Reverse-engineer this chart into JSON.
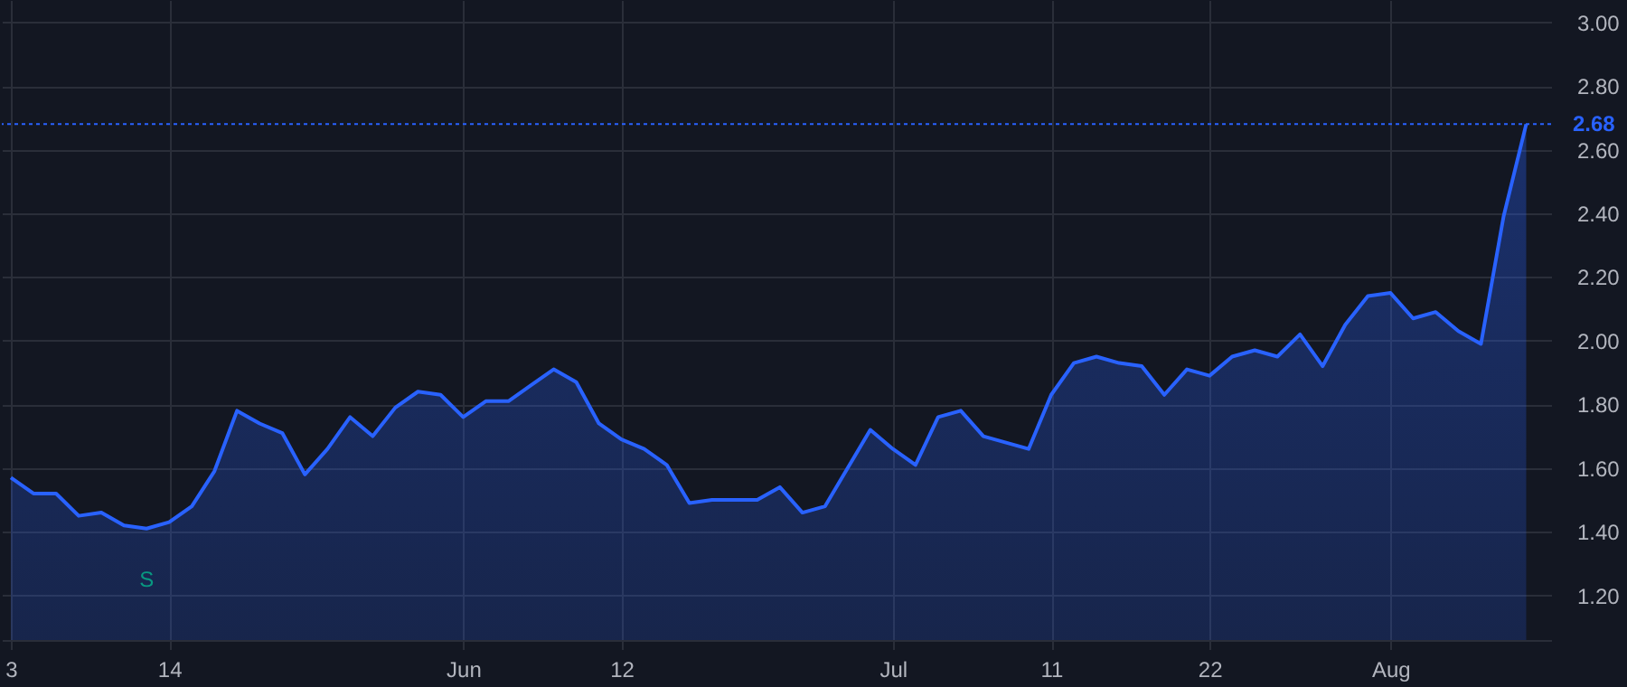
{
  "chart_data": {
    "type": "area",
    "categories": [
      "3",
      null,
      null,
      null,
      null,
      null,
      null,
      "14",
      null,
      null,
      null,
      null,
      null,
      null,
      null,
      null,
      null,
      null,
      null,
      null,
      "Jun",
      null,
      null,
      null,
      null,
      null,
      null,
      "12",
      null,
      null,
      null,
      null,
      null,
      null,
      null,
      null,
      null,
      null,
      null,
      "Jul",
      null,
      null,
      null,
      null,
      null,
      null,
      "11",
      null,
      null,
      null,
      null,
      null,
      null,
      "22",
      null,
      null,
      null,
      null,
      null,
      null,
      null,
      "Aug",
      null,
      null,
      null,
      null,
      null,
      null
    ],
    "series": [
      {
        "color": "#2962ff",
        "values": [
          1.57,
          1.52,
          1.52,
          1.45,
          1.46,
          1.42,
          1.41,
          1.43,
          1.48,
          1.59,
          1.78,
          1.74,
          1.71,
          1.58,
          1.66,
          1.76,
          1.7,
          1.79,
          1.84,
          1.83,
          1.76,
          1.81,
          1.81,
          1.86,
          1.91,
          1.87,
          1.74,
          1.69,
          1.66,
          1.61,
          1.49,
          1.5,
          1.5,
          1.5,
          1.54,
          1.46,
          1.48,
          1.6,
          1.72,
          1.66,
          1.61,
          1.76,
          1.78,
          1.7,
          1.68,
          1.66,
          1.83,
          1.93,
          1.95,
          1.93,
          1.92,
          1.83,
          1.91,
          1.89,
          1.95,
          1.97,
          1.95,
          2.02,
          1.92,
          2.05,
          2.14,
          2.15,
          2.07,
          2.09,
          2.03,
          1.99,
          2.39,
          2.68
        ]
      }
    ],
    "ylim": [
      1.06,
      3.07
    ],
    "yticks": [
      {
        "value": 1.2,
        "label": "1.20"
      },
      {
        "value": 1.4,
        "label": "1.40"
      },
      {
        "value": 1.6,
        "label": "1.60"
      },
      {
        "value": 1.8,
        "label": "1.80"
      },
      {
        "value": 2.0,
        "label": "2.00"
      },
      {
        "value": 2.2,
        "label": "2.20"
      },
      {
        "value": 2.4,
        "label": "2.40"
      },
      {
        "value": 2.6,
        "label": "2.60"
      },
      {
        "value": 2.8,
        "label": "2.80"
      },
      {
        "value": 3.0,
        "label": "3.00"
      }
    ],
    "ref_lines": [
      {
        "axis": "y",
        "value": 2.68,
        "label": "2.68",
        "color": "#2962ff",
        "line_style": "dotted"
      }
    ],
    "annotations": [
      {
        "text": "S",
        "y": 1.41
      }
    ],
    "grid": true,
    "marker": "none",
    "line_style": "solid"
  }
}
